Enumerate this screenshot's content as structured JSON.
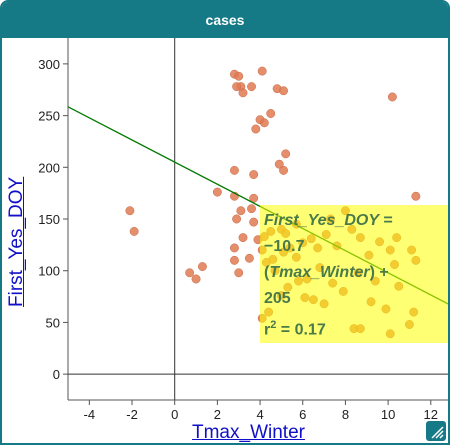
{
  "window": {
    "title": "cases"
  },
  "chart_data": {
    "type": "scatter",
    "xlabel": "Tmax_Winter",
    "ylabel": "First_Yes_DOY",
    "xlim": [
      -5,
      12.9
    ],
    "ylim": [
      -25,
      325
    ],
    "x_ticks": [
      "-4",
      "-2",
      "0",
      "2",
      "4",
      "6",
      "8",
      "10",
      "12"
    ],
    "y_ticks": [
      "0",
      "50",
      "100",
      "150",
      "200",
      "250",
      "300"
    ],
    "grid": false,
    "point_color": "#e07a52",
    "line_color": "#007a00",
    "fit": {
      "slope": -10.7,
      "intercept": 205,
      "r2": 0.17
    },
    "equation": {
      "line1": "First_Yes_DOY =",
      "line2": "−10.7",
      "line3_var": "Tmax_Winter",
      "line3_suffix": ") +",
      "line4": "205",
      "r2_label": "r",
      "r2_sup": "2",
      "r2_value": " = 0.17"
    },
    "points": [
      [
        -2.1,
        158
      ],
      [
        -1.9,
        138
      ],
      [
        0.7,
        98
      ],
      [
        1.0,
        92
      ],
      [
        1.3,
        104
      ],
      [
        2.0,
        176
      ],
      [
        2.8,
        290
      ],
      [
        3.0,
        288
      ],
      [
        3.1,
        278
      ],
      [
        2.9,
        278
      ],
      [
        3.2,
        272
      ],
      [
        3.6,
        278
      ],
      [
        4.1,
        293
      ],
      [
        4.5,
        252
      ],
      [
        4.8,
        276
      ],
      [
        5.1,
        274
      ],
      [
        3.8,
        237
      ],
      [
        4.0,
        246
      ],
      [
        4.2,
        243
      ],
      [
        2.8,
        197
      ],
      [
        3.7,
        193
      ],
      [
        4.9,
        203
      ],
      [
        5.2,
        213
      ],
      [
        5.1,
        197
      ],
      [
        2.8,
        172
      ],
      [
        3.1,
        158
      ],
      [
        3.6,
        160
      ],
      [
        3.7,
        147
      ],
      [
        3.7,
        170
      ],
      [
        2.9,
        150
      ],
      [
        2.8,
        122
      ],
      [
        3.2,
        132
      ],
      [
        3.9,
        130
      ],
      [
        4.2,
        133
      ],
      [
        4.5,
        138
      ],
      [
        5.0,
        140
      ],
      [
        5.2,
        136
      ],
      [
        5.7,
        145
      ],
      [
        3.0,
        98
      ],
      [
        2.8,
        110
      ],
      [
        3.5,
        112
      ],
      [
        4.1,
        120
      ],
      [
        4.3,
        108
      ],
      [
        4.6,
        111
      ],
      [
        4.7,
        100
      ],
      [
        5.1,
        118
      ],
      [
        5.4,
        122
      ],
      [
        5.7,
        113
      ],
      [
        6.0,
        127
      ],
      [
        6.4,
        131
      ],
      [
        6.7,
        122
      ],
      [
        7.1,
        135
      ],
      [
        7.3,
        150
      ],
      [
        7.6,
        124
      ],
      [
        8.0,
        158
      ],
      [
        8.3,
        140
      ],
      [
        8.7,
        132
      ],
      [
        9.1,
        115
      ],
      [
        9.6,
        128
      ],
      [
        10.1,
        120
      ],
      [
        10.4,
        132
      ],
      [
        11.1,
        120
      ],
      [
        11.3,
        172
      ],
      [
        10.2,
        268
      ],
      [
        8.4,
        44
      ],
      [
        8.7,
        44
      ],
      [
        9.2,
        70
      ],
      [
        9.9,
        63
      ],
      [
        10.1,
        39
      ],
      [
        10.5,
        85
      ],
      [
        11.0,
        48
      ],
      [
        11.2,
        60
      ],
      [
        11.3,
        110
      ],
      [
        6.8,
        103
      ],
      [
        7.4,
        88
      ],
      [
        7.9,
        80
      ],
      [
        5.8,
        90
      ],
      [
        6.1,
        74
      ],
      [
        6.5,
        72
      ],
      [
        7.0,
        68
      ],
      [
        5.3,
        84
      ],
      [
        4.4,
        60
      ],
      [
        4.1,
        54
      ],
      [
        5.0,
        76
      ],
      [
        6.2,
        92
      ],
      [
        8.6,
        98
      ],
      [
        9.4,
        90
      ],
      [
        10.3,
        106
      ]
    ]
  }
}
